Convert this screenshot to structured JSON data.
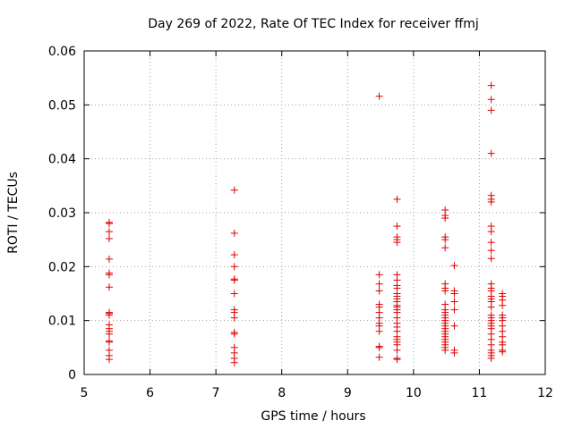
{
  "chart_data": {
    "type": "scatter",
    "title": "Day 269 of 2022, Rate Of TEC Index for receiver ffmj",
    "xlabel": "GPS time / hours",
    "ylabel": "ROTI / TECUs",
    "xlim": [
      5,
      12
    ],
    "ylim": [
      0,
      0.06
    ],
    "xticks": [
      "5",
      "6",
      "7",
      "8",
      "9",
      "10",
      "11",
      "12"
    ],
    "yticks": [
      "0",
      "0.01",
      "0.02",
      "0.03",
      "0.04",
      "0.05",
      "0.06"
    ],
    "grid": true,
    "marker": "+",
    "color": "#e00000",
    "series": [
      {
        "x": [
          5.38,
          5.38,
          5.38,
          5.38,
          5.38,
          5.38,
          5.38,
          5.38,
          5.38,
          5.38,
          5.38,
          5.38,
          5.38,
          5.38,
          5.38,
          5.38,
          5.38,
          5.38,
          5.38,
          5.38,
          7.28,
          7.28,
          7.28,
          7.28,
          7.28,
          7.28,
          7.28,
          7.28,
          7.28,
          7.28,
          7.28,
          7.28,
          7.28,
          7.28,
          7.28,
          7.28,
          9.48,
          9.48,
          9.48,
          9.48,
          9.48,
          9.48,
          9.48,
          9.48,
          9.48,
          9.48,
          9.48,
          9.48,
          9.48,
          9.48,
          9.75,
          9.75,
          9.75,
          9.75,
          9.75,
          9.75,
          9.75,
          9.75,
          9.75,
          9.75,
          9.75,
          9.75,
          9.75,
          9.75,
          9.75,
          9.75,
          9.75,
          9.75,
          9.75,
          9.75,
          9.75,
          9.75,
          9.75,
          9.75,
          9.75,
          9.75,
          9.75,
          9.75,
          10.48,
          10.48,
          10.48,
          10.48,
          10.48,
          10.48,
          10.48,
          10.48,
          10.48,
          10.48,
          10.48,
          10.48,
          10.48,
          10.48,
          10.48,
          10.48,
          10.48,
          10.48,
          10.48,
          10.48,
          10.48,
          10.48,
          10.48,
          10.48,
          10.48,
          10.48,
          10.62,
          10.62,
          10.62,
          10.62,
          10.62,
          10.62,
          10.62,
          10.62,
          11.18,
          11.18,
          11.18,
          11.18,
          11.18,
          11.18,
          11.18,
          11.18,
          11.18,
          11.18,
          11.18,
          11.18,
          11.18,
          11.18,
          11.18,
          11.18,
          11.18,
          11.18,
          11.18,
          11.18,
          11.18,
          11.18,
          11.18,
          11.18,
          11.18,
          11.18,
          11.18,
          11.18,
          11.18,
          11.18,
          11.18,
          11.18,
          11.35,
          11.35,
          11.35,
          11.35,
          11.35,
          11.35,
          11.35,
          11.35,
          11.35,
          11.35,
          11.35,
          11.35,
          11.35,
          11.35
        ],
        "y": [
          0.0282,
          0.028,
          0.0265,
          0.0252,
          0.0214,
          0.0188,
          0.0185,
          0.0162,
          0.0115,
          0.0113,
          0.011,
          0.0092,
          0.0085,
          0.008,
          0.0075,
          0.0062,
          0.006,
          0.0045,
          0.0035,
          0.0028,
          0.0342,
          0.0262,
          0.0222,
          0.02,
          0.0177,
          0.0175,
          0.015,
          0.012,
          0.0115,
          0.0105,
          0.0078,
          0.0075,
          0.005,
          0.004,
          0.003,
          0.0022,
          0.0516,
          0.0185,
          0.0168,
          0.0155,
          0.013,
          0.0125,
          0.0115,
          0.0105,
          0.0095,
          0.009,
          0.008,
          0.0052,
          0.005,
          0.0032,
          0.0325,
          0.0275,
          0.0255,
          0.025,
          0.0245,
          0.0185,
          0.0175,
          0.0165,
          0.016,
          0.015,
          0.0145,
          0.014,
          0.0135,
          0.0128,
          0.0125,
          0.012,
          0.0115,
          0.0105,
          0.0095,
          0.0088,
          0.008,
          0.007,
          0.0065,
          0.006,
          0.0055,
          0.0045,
          0.003,
          0.0028,
          0.0305,
          0.0295,
          0.029,
          0.0255,
          0.025,
          0.0235,
          0.0168,
          0.016,
          0.0155,
          0.013,
          0.012,
          0.0115,
          0.011,
          0.0105,
          0.01,
          0.0095,
          0.009,
          0.0085,
          0.008,
          0.0075,
          0.007,
          0.0065,
          0.006,
          0.0055,
          0.005,
          0.0045,
          0.0202,
          0.0155,
          0.015,
          0.0135,
          0.012,
          0.009,
          0.0045,
          0.004,
          0.0536,
          0.051,
          0.049,
          0.041,
          0.0332,
          0.0325,
          0.032,
          0.0275,
          0.0265,
          0.0245,
          0.023,
          0.0215,
          0.0168,
          0.016,
          0.0155,
          0.0145,
          0.014,
          0.0135,
          0.0125,
          0.011,
          0.0105,
          0.01,
          0.0095,
          0.009,
          0.0085,
          0.0075,
          0.0065,
          0.0055,
          0.0045,
          0.004,
          0.0035,
          0.003,
          0.015,
          0.0145,
          0.0138,
          0.0128,
          0.011,
          0.0105,
          0.01,
          0.009,
          0.008,
          0.007,
          0.006,
          0.0055,
          0.0045,
          0.0042
        ]
      }
    ]
  }
}
